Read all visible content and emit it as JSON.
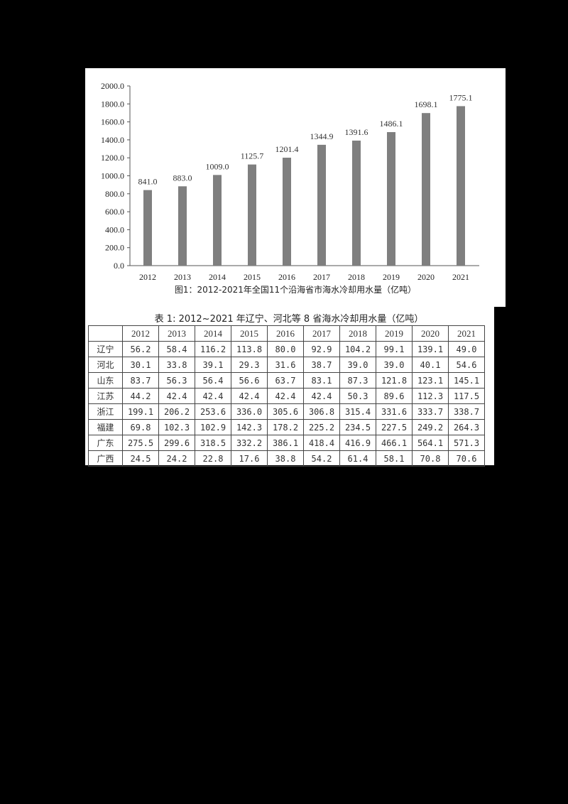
{
  "chart_data": {
    "type": "bar",
    "title": "图1：2012-2021年全国11个沿海省市海水冷却用水量（亿吨）",
    "xlabel": "",
    "ylabel": "",
    "categories": [
      "2012",
      "2013",
      "2014",
      "2015",
      "2016",
      "2017",
      "2018",
      "2019",
      "2020",
      "2021"
    ],
    "values": [
      841.0,
      883.0,
      1009.0,
      1125.7,
      1201.4,
      1344.9,
      1391.6,
      1486.1,
      1698.1,
      1775.1
    ],
    "value_labels": [
      "841.0",
      "883.0",
      "1009.0",
      "1125.7",
      "1201.4",
      "1344.9",
      "1391.6",
      "1486.1",
      "1698.1",
      "1775.1"
    ],
    "ylim": [
      0,
      2000
    ],
    "yticks": [
      "0.0",
      "200.0",
      "400.0",
      "600.0",
      "800.0",
      "1000.0",
      "1200.0",
      "1400.0",
      "1600.0",
      "1800.0",
      "2000.0"
    ],
    "grid": false,
    "legend": null,
    "bar_color": "#7f7f7f"
  },
  "table": {
    "title": "表 1:  2012~2021 年辽宁、河北等 8 省海水冷却用水量（亿吨）",
    "corner": "",
    "columns": [
      "2012",
      "2013",
      "2014",
      "2015",
      "2016",
      "2017",
      "2018",
      "2019",
      "2020",
      "2021"
    ],
    "rows": [
      {
        "province": "辽宁",
        "values": [
          "56.2",
          "58.4",
          "116.2",
          "113.8",
          "80.0",
          "92.9",
          "104.2",
          "99.1",
          "139.1",
          "49.0"
        ]
      },
      {
        "province": "河北",
        "values": [
          "30.1",
          "33.8",
          "39.1",
          "29.3",
          "31.6",
          "38.7",
          "39.0",
          "39.0",
          "40.1",
          "54.6"
        ]
      },
      {
        "province": "山东",
        "values": [
          "83.7",
          "56.3",
          "56.4",
          "56.6",
          "63.7",
          "83.1",
          "87.3",
          "121.8",
          "123.1",
          "145.1"
        ]
      },
      {
        "province": "江苏",
        "values": [
          "44.2",
          "42.4",
          "42.4",
          "42.4",
          "42.4",
          "42.4",
          "50.3",
          "89.6",
          "112.3",
          "117.5"
        ]
      },
      {
        "province": "浙江",
        "values": [
          "199.1",
          "206.2",
          "253.6",
          "336.0",
          "305.6",
          "306.8",
          "315.4",
          "331.6",
          "333.7",
          "338.7"
        ]
      },
      {
        "province": "福建",
        "values": [
          "69.8",
          "102.3",
          "102.9",
          "142.3",
          "178.2",
          "225.2",
          "234.5",
          "227.5",
          "249.2",
          "264.3"
        ]
      },
      {
        "province": "广东",
        "values": [
          "275.5",
          "299.6",
          "318.5",
          "332.2",
          "386.1",
          "418.4",
          "416.9",
          "466.1",
          "564.1",
          "571.3"
        ]
      },
      {
        "province": "广西",
        "values": [
          "24.5",
          "24.2",
          "22.8",
          "17.6",
          "38.8",
          "54.2",
          "61.4",
          "58.1",
          "70.8",
          "70.6"
        ]
      }
    ]
  }
}
